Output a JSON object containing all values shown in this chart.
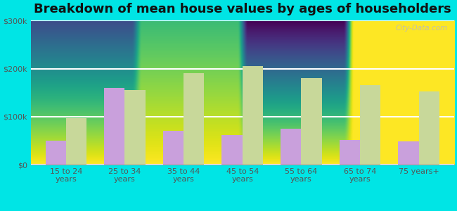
{
  "title": "Breakdown of mean house values by ages of householders",
  "categories": [
    "15 to 24\nyears",
    "25 to 34\nyears",
    "35 to 44\nyears",
    "45 to 54\nyears",
    "55 to 64\nyears",
    "65 to 74\nyears",
    "75 years+"
  ],
  "achille_values": [
    50000,
    160000,
    70000,
    62000,
    75000,
    52000,
    48000
  ],
  "oklahoma_values": [
    97000,
    155000,
    190000,
    205000,
    180000,
    165000,
    152000
  ],
  "achille_color": "#c9a0dc",
  "oklahoma_color": "#c8d89a",
  "figure_bg_color": "#00e5e5",
  "plot_bg_color_top": "#d4ecc8",
  "plot_bg_color_bottom": "#ffffff",
  "ylim": [
    0,
    300000
  ],
  "yticks": [
    0,
    100000,
    200000,
    300000
  ],
  "ytick_labels": [
    "$0",
    "$100k",
    "$200k",
    "$300k"
  ],
  "bar_width": 0.35,
  "title_fontsize": 13,
  "tick_fontsize": 8,
  "legend_fontsize": 9,
  "watermark": "City-Data.com",
  "grid_color": "#ffffff"
}
